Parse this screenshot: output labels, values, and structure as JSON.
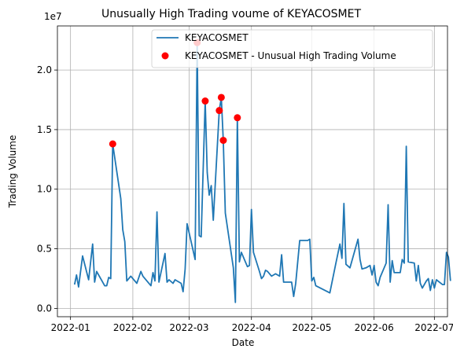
{
  "chart_data": {
    "type": "line",
    "title": "Unusually High Trading voume of KEYACOSMET",
    "xlabel": "Date",
    "ylabel": "Trading Volume",
    "y_offset_label": "1e7",
    "xlim": [
      "2022-01-01",
      "2022-07-01"
    ],
    "ylim": [
      0,
      23000000
    ],
    "x_ticks": [
      "2022-01-01",
      "2022-02-01",
      "2022-03-01",
      "2022-04-01",
      "2022-05-01",
      "2022-06-01",
      "2022-07-01"
    ],
    "x_tick_labels": [
      "2022-01",
      "2022-02",
      "2022-03",
      "2022-04",
      "2022-05",
      "2022-06",
      "2022-07"
    ],
    "y_ticks": [
      0,
      5000000,
      10000000,
      15000000,
      20000000
    ],
    "y_tick_labels": [
      "0.0",
      "0.5",
      "1.0",
      "1.5",
      "2.0"
    ],
    "grid": true,
    "legend_position": "top-right",
    "series": [
      {
        "name": "KEYACOSMET",
        "type": "line",
        "color": "#1f77b4",
        "points": [
          [
            "2022-01-03",
            2000000
          ],
          [
            "2022-01-04",
            2800000
          ],
          [
            "2022-01-05",
            1800000
          ],
          [
            "2022-01-07",
            4400000
          ],
          [
            "2022-01-10",
            2400000
          ],
          [
            "2022-01-12",
            5400000
          ],
          [
            "2022-01-13",
            2200000
          ],
          [
            "2022-01-14",
            3100000
          ],
          [
            "2022-01-18",
            1900000
          ],
          [
            "2022-01-19",
            1900000
          ],
          [
            "2022-01-20",
            2600000
          ],
          [
            "2022-01-21",
            2500000
          ],
          [
            "2022-01-22",
            13800000
          ],
          [
            "2022-01-26",
            9200000
          ],
          [
            "2022-01-27",
            6600000
          ],
          [
            "2022-01-28",
            5600000
          ],
          [
            "2022-01-29",
            2300000
          ],
          [
            "2022-01-31",
            2700000
          ],
          [
            "2022-02-03",
            2100000
          ],
          [
            "2022-02-05",
            3100000
          ],
          [
            "2022-02-06",
            2700000
          ],
          [
            "2022-02-10",
            1900000
          ],
          [
            "2022-02-11",
            3000000
          ],
          [
            "2022-02-12",
            2300000
          ],
          [
            "2022-02-13",
            8100000
          ],
          [
            "2022-02-14",
            2200000
          ],
          [
            "2022-02-16",
            3800000
          ],
          [
            "2022-02-17",
            4600000
          ],
          [
            "2022-02-18",
            2200000
          ],
          [
            "2022-02-19",
            2400000
          ],
          [
            "2022-02-21",
            2100000
          ],
          [
            "2022-02-22",
            2400000
          ],
          [
            "2022-02-25",
            2100000
          ],
          [
            "2022-02-26",
            1400000
          ],
          [
            "2022-02-27",
            3300000
          ],
          [
            "2022-02-28",
            7100000
          ],
          [
            "2022-03-04",
            4100000
          ],
          [
            "2022-03-05",
            22300000
          ],
          [
            "2022-03-06",
            6100000
          ],
          [
            "2022-03-07",
            6000000
          ],
          [
            "2022-03-09",
            17400000
          ],
          [
            "2022-03-10",
            11400000
          ],
          [
            "2022-03-11",
            9500000
          ],
          [
            "2022-03-12",
            10300000
          ],
          [
            "2022-03-13",
            7400000
          ],
          [
            "2022-03-16",
            16600000
          ],
          [
            "2022-03-17",
            17700000
          ],
          [
            "2022-03-18",
            14100000
          ],
          [
            "2022-03-19",
            8000000
          ],
          [
            "2022-03-23",
            3400000
          ],
          [
            "2022-03-24",
            500000
          ],
          [
            "2022-03-25",
            16000000
          ],
          [
            "2022-03-26",
            3900000
          ],
          [
            "2022-03-27",
            4700000
          ],
          [
            "2022-03-30",
            3500000
          ],
          [
            "2022-03-31",
            3600000
          ],
          [
            "2022-04-01",
            8300000
          ],
          [
            "2022-04-02",
            4700000
          ],
          [
            "2022-04-05",
            3100000
          ],
          [
            "2022-04-06",
            2500000
          ],
          [
            "2022-04-07",
            2700000
          ],
          [
            "2022-04-08",
            3200000
          ],
          [
            "2022-04-09",
            3100000
          ],
          [
            "2022-04-11",
            2700000
          ],
          [
            "2022-04-13",
            2900000
          ],
          [
            "2022-04-15",
            2700000
          ],
          [
            "2022-04-16",
            4500000
          ],
          [
            "2022-04-17",
            2200000
          ],
          [
            "2022-04-20",
            2200000
          ],
          [
            "2022-04-21",
            2200000
          ],
          [
            "2022-04-22",
            1000000
          ],
          [
            "2022-04-23",
            2100000
          ],
          [
            "2022-04-25",
            5700000
          ],
          [
            "2022-04-29",
            5700000
          ],
          [
            "2022-04-30",
            5800000
          ],
          [
            "2022-05-01",
            2300000
          ],
          [
            "2022-05-02",
            2600000
          ],
          [
            "2022-05-03",
            1900000
          ],
          [
            "2022-05-10",
            1300000
          ],
          [
            "2022-05-13",
            3800000
          ],
          [
            "2022-05-15",
            5400000
          ],
          [
            "2022-05-16",
            4200000
          ],
          [
            "2022-05-17",
            8800000
          ],
          [
            "2022-05-18",
            3700000
          ],
          [
            "2022-05-20",
            3400000
          ],
          [
            "2022-05-24",
            5800000
          ],
          [
            "2022-05-25",
            4100000
          ],
          [
            "2022-05-26",
            3300000
          ],
          [
            "2022-05-28",
            3400000
          ],
          [
            "2022-05-30",
            3600000
          ],
          [
            "2022-05-31",
            2800000
          ],
          [
            "2022-06-01",
            3600000
          ],
          [
            "2022-06-02",
            2200000
          ],
          [
            "2022-06-03",
            1900000
          ],
          [
            "2022-06-04",
            2600000
          ],
          [
            "2022-06-07",
            3800000
          ],
          [
            "2022-06-08",
            8700000
          ],
          [
            "2022-06-09",
            2200000
          ],
          [
            "2022-06-10",
            4000000
          ],
          [
            "2022-06-11",
            3000000
          ],
          [
            "2022-06-14",
            3000000
          ],
          [
            "2022-06-15",
            4100000
          ],
          [
            "2022-06-16",
            3800000
          ],
          [
            "2022-06-17",
            13600000
          ],
          [
            "2022-06-18",
            3900000
          ],
          [
            "2022-06-21",
            3800000
          ],
          [
            "2022-06-22",
            2300000
          ],
          [
            "2022-06-23",
            3600000
          ],
          [
            "2022-06-24",
            2100000
          ],
          [
            "2022-06-25",
            1700000
          ],
          [
            "2022-06-27",
            2300000
          ],
          [
            "2022-06-28",
            2500000
          ],
          [
            "2022-06-29",
            1500000
          ],
          [
            "2022-06-30",
            2400000
          ],
          [
            "2022-07-01",
            1700000
          ],
          [
            "2022-07-02",
            2400000
          ],
          [
            "2022-07-05",
            2000000
          ],
          [
            "2022-07-06",
            2000000
          ],
          [
            "2022-07-07",
            4700000
          ],
          [
            "2022-07-08",
            4300000
          ],
          [
            "2022-07-09",
            2300000
          ]
        ]
      },
      {
        "name": "KEYACOSMET - Unusual High Trading Volume",
        "type": "scatter",
        "color": "#ff0000",
        "points": [
          [
            "2022-01-22",
            13800000
          ],
          [
            "2022-03-05",
            22300000
          ],
          [
            "2022-03-09",
            17400000
          ],
          [
            "2022-03-16",
            16600000
          ],
          [
            "2022-03-17",
            17700000
          ],
          [
            "2022-03-18",
            14100000
          ],
          [
            "2022-03-25",
            16000000
          ]
        ]
      }
    ]
  }
}
